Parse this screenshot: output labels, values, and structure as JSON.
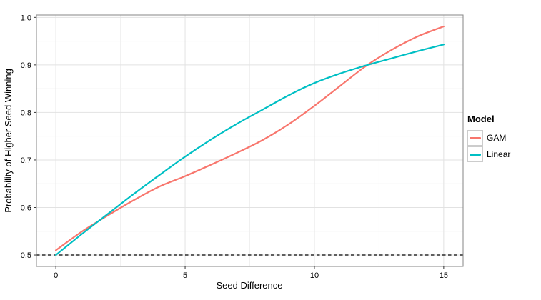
{
  "chart_data": {
    "type": "line",
    "title": "",
    "xlabel": "Seed Difference",
    "ylabel": "Probability of Higher Seed Winning",
    "legend_title": "Model",
    "legend_position": "right",
    "grid": true,
    "x": [
      0,
      1,
      2,
      3,
      4,
      5,
      6,
      7,
      8,
      9,
      10,
      11,
      12,
      13,
      14,
      15
    ],
    "series": [
      {
        "name": "GAM",
        "color": "#F8766D",
        "values": [
          0.51,
          0.549,
          0.583,
          0.615,
          0.644,
          0.666,
          0.69,
          0.715,
          0.742,
          0.775,
          0.814,
          0.856,
          0.898,
          0.932,
          0.96,
          0.981
        ]
      },
      {
        "name": "Linear",
        "color": "#00BFC4",
        "values": [
          0.5,
          0.544,
          0.586,
          0.628,
          0.668,
          0.707,
          0.743,
          0.776,
          0.806,
          0.836,
          0.862,
          0.882,
          0.899,
          0.914,
          0.929,
          0.943
        ]
      }
    ],
    "reference_line": {
      "y": 0.5,
      "style": "dashed",
      "color": "#000000"
    },
    "x_breaks": [
      0,
      5,
      10,
      15
    ],
    "x_tick_labels": [
      "0",
      "5",
      "10",
      "15"
    ],
    "x_minor_breaks": [
      2.5,
      7.5,
      12.5
    ],
    "y_breaks": [
      0.5,
      0.6,
      0.7,
      0.8,
      0.9,
      1.0
    ],
    "y_tick_labels": [
      "0.5",
      "0.6",
      "0.7",
      "0.8",
      "0.9",
      "1.0"
    ],
    "y_minor_breaks": [
      0.55,
      0.65,
      0.75,
      0.85,
      0.95
    ],
    "xlim": [
      -0.75,
      15.75
    ],
    "ylim": [
      0.476,
      1.005
    ],
    "colors": {
      "panel_bg": "#FFFFFF",
      "background": "#FFFFFF",
      "grid_major": "#E2E2E2",
      "grid_minor": "#F0F0F0",
      "panel_border": "#858585",
      "tick": "#333333",
      "text": "#000000"
    }
  }
}
